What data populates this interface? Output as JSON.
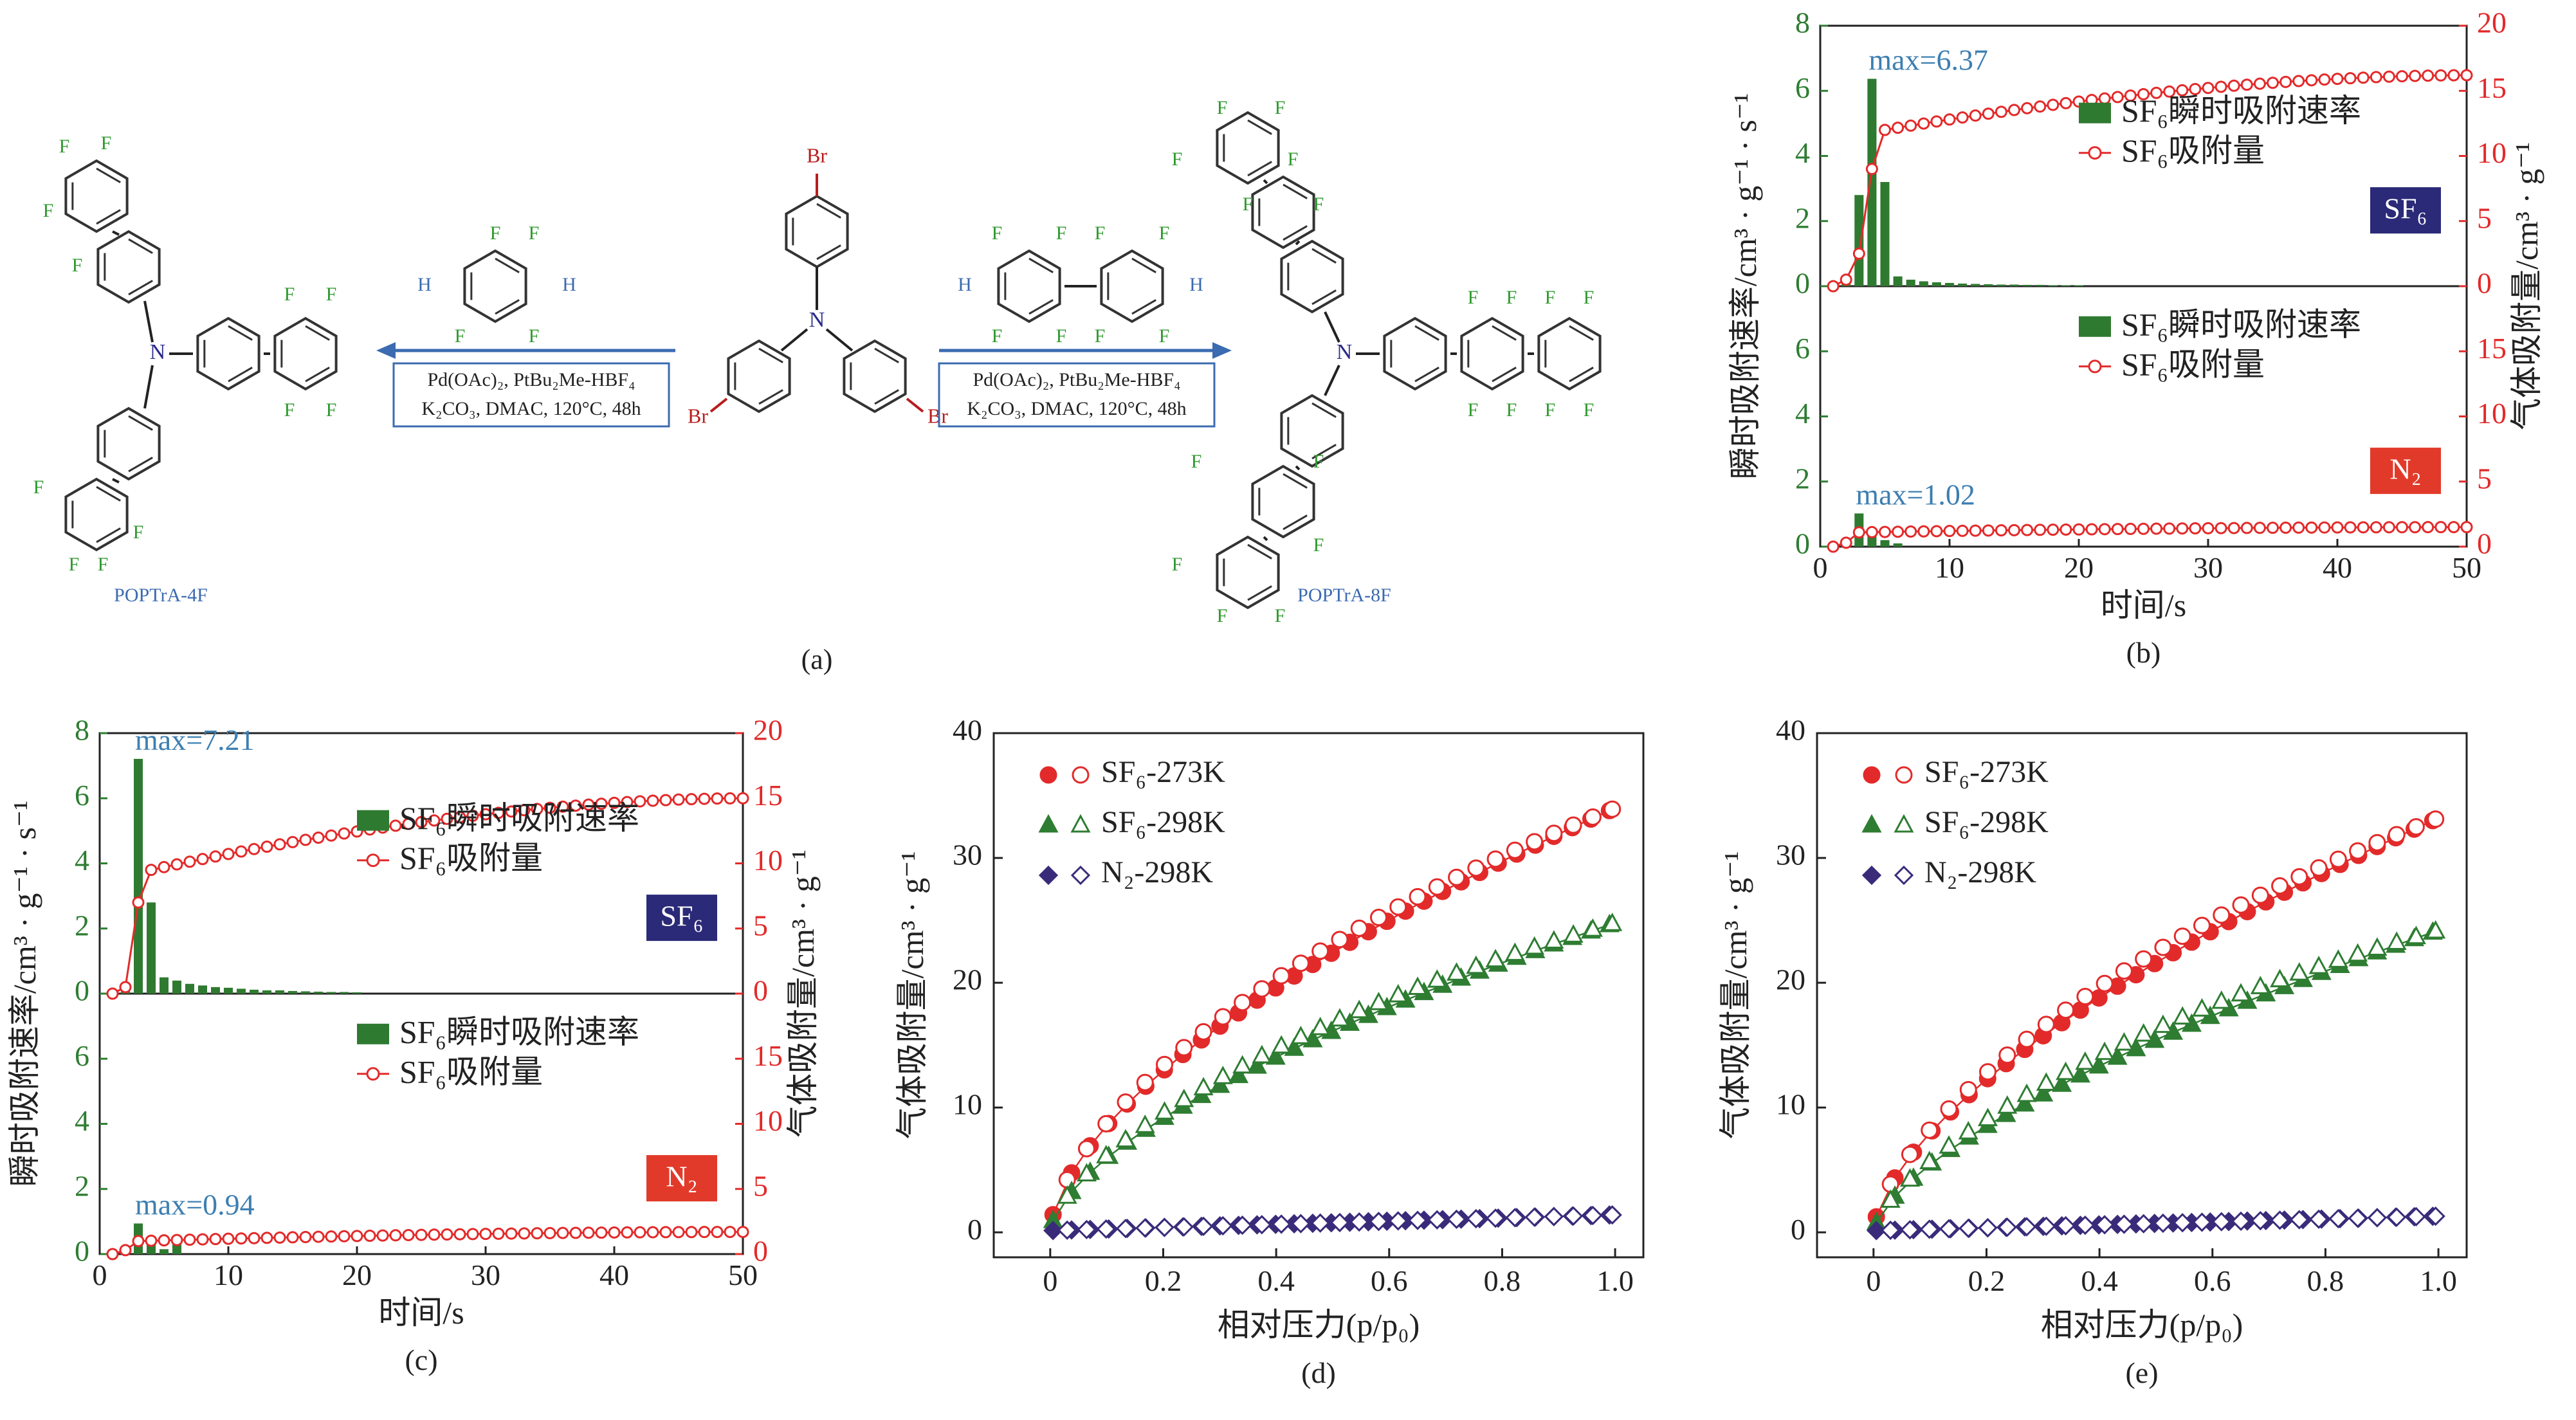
{
  "colors": {
    "green": "#2e7d32",
    "bar_green": "#2f7a31",
    "red": "#e32a2a",
    "blue_text": "#3d7fb1",
    "navy": "#2b2a78",
    "purple": "#3a2b7a",
    "dark_red_label": "#e23a2a",
    "scheme_blue": "#3b6bb0",
    "scheme_red": "#b81c1c",
    "scheme_green": "#2f9a2f"
  },
  "scheme": {
    "panel_label": "(a)",
    "left_name": "POPTrA-4F",
    "right_name": "POPTrA-8F",
    "left_box_line1": "Pd(OAc)₂, PtBu₂Me-HBF₄",
    "left_box_line2": "K₂CO₃, DMAC, 120°C, 48h",
    "right_box_line1": "Pd(OAc)₂, PtBu₂Me-HBF₄",
    "right_box_line2": "K₂CO₃, DMAC, 120°C, 48h",
    "atom_F": "F",
    "atom_H": "H",
    "atom_N": "N",
    "atom_Br": "Br"
  },
  "chart_data": [
    {
      "panel": "(b)",
      "type": "bar+line",
      "xlabel": "时间/s",
      "ylabel_left": "瞬时吸附速率/cm³ · g⁻¹ · s⁻¹",
      "ylabel_right": "气体吸附量/cm³ · g⁻¹",
      "xlim": [
        0,
        50
      ],
      "xticks": [
        "0",
        "10",
        "20",
        "30",
        "40",
        "50"
      ],
      "subplots": [
        {
          "gas": "SF₆",
          "max_label": "max=6.37",
          "legend": [
            "SF₆瞬时吸附速率",
            "SF₆吸附量"
          ],
          "ylim_left": [
            0,
            8
          ],
          "yticks_left": [
            "0",
            "2",
            "4",
            "6",
            "8"
          ],
          "ylim_right": [
            0,
            20
          ],
          "yticks_right": [
            "0",
            "5",
            "10",
            "15",
            "20"
          ],
          "bars_x": [
            2,
            3,
            4,
            5,
            6,
            7,
            8,
            9,
            10,
            11,
            12,
            13,
            14,
            15,
            16,
            17,
            18,
            19,
            20
          ],
          "bars_y": [
            0.1,
            2.8,
            6.37,
            3.2,
            0.3,
            0.2,
            0.15,
            0.12,
            0.1,
            0.08,
            0.07,
            0.06,
            0.05,
            0.05,
            0.04,
            0.04,
            0.03,
            0.03,
            0.03
          ],
          "uptake_final": 16.2,
          "uptake_shape": [
            2,
            3,
            4,
            5
          ],
          "uptake_points": [
            0.5,
            2.5,
            9.0,
            12.0
          ]
        },
        {
          "gas": "N₂",
          "max_label": "max=1.02",
          "legend": [
            "SF₆瞬时吸附速率",
            "SF₆吸附量"
          ],
          "ylim_left": [
            0,
            8
          ],
          "yticks_left": [
            "0",
            "2",
            "4",
            "6"
          ],
          "ylim_right": [
            0,
            20
          ],
          "yticks_right": [
            "0",
            "5",
            "10",
            "15"
          ],
          "bars_x": [
            2,
            3,
            4,
            5,
            6
          ],
          "bars_y": [
            0.1,
            1.02,
            0.4,
            0.2,
            0.1
          ],
          "uptake_final": 1.5,
          "uptake_shape": [
            2,
            3
          ],
          "uptake_points": [
            0.3,
            1.1
          ]
        }
      ]
    },
    {
      "panel": "(c)",
      "type": "bar+line",
      "xlabel": "时间/s",
      "ylabel_left": "瞬时吸附速率/cm³ · g⁻¹ · s⁻¹",
      "ylabel_right": "气体吸附量/cm³ · g⁻¹",
      "xlim": [
        0,
        50
      ],
      "xticks": [
        "0",
        "10",
        "20",
        "30",
        "40",
        "50"
      ],
      "subplots": [
        {
          "gas": "SF₆",
          "max_label": "max=7.21",
          "legend": [
            "SF₆瞬时吸附速率",
            "SF₆吸附量"
          ],
          "ylim_left": [
            0,
            8
          ],
          "yticks_left": [
            "0",
            "2",
            "4",
            "6",
            "8"
          ],
          "ylim_right": [
            0,
            20
          ],
          "yticks_right": [
            "0",
            "5",
            "10",
            "15",
            "20"
          ],
          "bars_x": [
            2,
            3,
            4,
            5,
            6,
            7,
            8,
            9,
            10,
            11,
            12,
            13,
            14,
            15,
            16,
            17,
            18,
            19,
            20
          ],
          "bars_y": [
            0.1,
            7.21,
            2.8,
            0.5,
            0.4,
            0.3,
            0.25,
            0.2,
            0.18,
            0.15,
            0.12,
            0.1,
            0.1,
            0.08,
            0.07,
            0.06,
            0.05,
            0.05,
            0.04
          ],
          "uptake_final": 15.0,
          "uptake_shape": [
            2,
            3,
            4
          ],
          "uptake_points": [
            0.5,
            7.0,
            9.5
          ]
        },
        {
          "gas": "N₂",
          "max_label": "max=0.94",
          "legend": [
            "SF₆瞬时吸附速率",
            "SF₆吸附量"
          ],
          "ylim_left": [
            0,
            8
          ],
          "yticks_left": [
            "0",
            "2",
            "4",
            "6"
          ],
          "ylim_right": [
            0,
            20
          ],
          "yticks_right": [
            "0",
            "5",
            "10",
            "15"
          ],
          "bars_x": [
            2,
            3,
            4,
            5,
            6
          ],
          "bars_y": [
            0.1,
            0.94,
            0.3,
            0.15,
            0.3
          ],
          "uptake_final": 1.7,
          "uptake_shape": [
            2,
            3
          ],
          "uptake_points": [
            0.3,
            1.0
          ]
        }
      ]
    },
    {
      "panel": "(d)",
      "type": "scatter",
      "xlabel": "相对压力(p/p₀)",
      "ylabel": "气体吸附量/cm³ · g⁻¹",
      "xlim": [
        -0.1,
        1.05
      ],
      "ylim": [
        -2,
        40
      ],
      "xticks": [
        "0",
        "0.2",
        "0.4",
        "0.6",
        "0.8",
        "1.0"
      ],
      "yticks": [
        "0",
        "10",
        "20",
        "30",
        "40"
      ],
      "legend": [
        "SF₆-273K",
        "SF₆-298K",
        "N₂-298K"
      ],
      "series": [
        {
          "name": "SF₆-273K",
          "a": 34.0,
          "k": 5.5,
          "n": 0.6,
          "desorb_shift": 0.7
        },
        {
          "name": "SF₆-298K",
          "a": 24.8,
          "k": 3.5,
          "n": 0.62,
          "desorb_shift": 0.7
        },
        {
          "name": "N₂-298K",
          "a": 1.4,
          "k": 0.0,
          "n": 1.0,
          "desorb_shift": 0.0
        }
      ]
    },
    {
      "panel": "(e)",
      "type": "scatter",
      "xlabel": "相对压力(p/p₀)",
      "ylabel": "气体吸附量/cm³ · g⁻¹",
      "xlim": [
        -0.1,
        1.05
      ],
      "ylim": [
        -2,
        40
      ],
      "xticks": [
        "0",
        "0.2",
        "0.4",
        "0.6",
        "0.8",
        "1.0"
      ],
      "yticks": [
        "0",
        "10",
        "20",
        "30",
        "40"
      ],
      "legend": [
        "SF₆-273K",
        "SF₆-298K",
        "N₂-298K"
      ],
      "series": [
        {
          "name": "SF₆-273K",
          "a": 33.2,
          "k": 5.0,
          "n": 0.62,
          "desorb_shift": 0.9
        },
        {
          "name": "SF₆-298K",
          "a": 24.2,
          "k": 2.8,
          "n": 0.65,
          "desorb_shift": 0.9
        },
        {
          "name": "N₂-298K",
          "a": 1.3,
          "k": 0.0,
          "n": 1.0,
          "desorb_shift": 0.0
        }
      ]
    }
  ]
}
